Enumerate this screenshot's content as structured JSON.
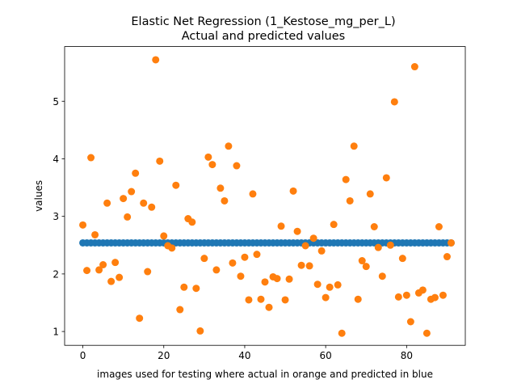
{
  "chart_data": {
    "type": "scatter",
    "title_line1": "Elastic Net Regression (1_Kestose_mg_per_L)",
    "title_line2": "Actual and predicted values",
    "xlabel": "images used for testing where actual in orange and predicted in blue",
    "ylabel": "values",
    "xlim": [
      -4.5,
      94.5
    ],
    "ylim": [
      0.76,
      5.95
    ],
    "xticks": [
      0,
      20,
      40,
      60,
      80
    ],
    "yticks": [
      1,
      2,
      3,
      4,
      5
    ],
    "grid": false,
    "series": [
      {
        "color": "#1f77b4",
        "x": [
          0,
          1,
          2,
          3,
          4,
          5,
          6,
          7,
          8,
          9,
          10,
          11,
          12,
          13,
          14,
          15,
          16,
          17,
          18,
          19,
          20,
          21,
          22,
          23,
          24,
          25,
          26,
          27,
          28,
          29,
          30,
          31,
          32,
          33,
          34,
          35,
          36,
          37,
          38,
          39,
          40,
          41,
          42,
          43,
          44,
          45,
          46,
          47,
          48,
          49,
          50,
          51,
          52,
          53,
          54,
          55,
          56,
          57,
          58,
          59,
          60,
          61,
          62,
          63,
          64,
          65,
          66,
          67,
          68,
          69,
          70,
          71,
          72,
          73,
          74,
          75,
          76,
          77,
          78,
          79,
          80,
          81,
          82,
          83,
          84,
          85,
          86,
          87,
          88,
          89,
          90,
          91
        ],
        "y": [
          2.54,
          2.54,
          2.54,
          2.54,
          2.54,
          2.54,
          2.54,
          2.54,
          2.54,
          2.54,
          2.54,
          2.54,
          2.54,
          2.54,
          2.54,
          2.54,
          2.54,
          2.54,
          2.54,
          2.54,
          2.54,
          2.54,
          2.54,
          2.54,
          2.54,
          2.54,
          2.54,
          2.54,
          2.54,
          2.54,
          2.54,
          2.54,
          2.54,
          2.54,
          2.54,
          2.54,
          2.54,
          2.54,
          2.54,
          2.54,
          2.54,
          2.54,
          2.54,
          2.54,
          2.54,
          2.54,
          2.54,
          2.54,
          2.54,
          2.54,
          2.54,
          2.54,
          2.54,
          2.54,
          2.54,
          2.54,
          2.54,
          2.54,
          2.54,
          2.54,
          2.54,
          2.54,
          2.54,
          2.54,
          2.54,
          2.54,
          2.54,
          2.54,
          2.54,
          2.54,
          2.54,
          2.54,
          2.54,
          2.54,
          2.54,
          2.54,
          2.54,
          2.54,
          2.54,
          2.54,
          2.54,
          2.54,
          2.54,
          2.54,
          2.54,
          2.54,
          2.54,
          2.54,
          2.54,
          2.54,
          2.54,
          2.54
        ]
      },
      {
        "color": "#ff7f0e",
        "x": [
          0,
          1,
          2,
          3,
          4,
          5,
          6,
          7,
          8,
          9,
          10,
          11,
          12,
          13,
          14,
          15,
          16,
          17,
          18,
          19,
          20,
          21,
          22,
          23,
          24,
          25,
          26,
          27,
          28,
          29,
          30,
          31,
          32,
          33,
          34,
          35,
          36,
          37,
          38,
          39,
          40,
          41,
          42,
          43,
          44,
          45,
          46,
          47,
          48,
          49,
          50,
          51,
          52,
          53,
          54,
          55,
          56,
          57,
          58,
          59,
          60,
          61,
          62,
          63,
          64,
          65,
          66,
          67,
          68,
          69,
          70,
          71,
          72,
          73,
          74,
          75,
          76,
          77,
          78,
          79,
          80,
          81,
          82,
          83,
          84,
          85,
          86,
          87,
          88,
          89,
          90,
          91
        ],
        "y": [
          2.85,
          2.06,
          4.02,
          2.68,
          2.07,
          2.16,
          3.23,
          1.87,
          2.2,
          1.94,
          3.31,
          2.99,
          3.43,
          3.75,
          1.23,
          3.23,
          2.04,
          3.16,
          5.72,
          3.96,
          2.66,
          2.49,
          2.45,
          3.54,
          1.38,
          1.77,
          2.96,
          2.9,
          1.75,
          1.01,
          2.27,
          4.03,
          3.9,
          2.07,
          3.49,
          3.27,
          4.22,
          2.19,
          3.88,
          1.96,
          2.29,
          1.55,
          3.39,
          2.34,
          1.56,
          1.86,
          1.42,
          1.95,
          1.92,
          2.83,
          1.55,
          1.91,
          3.44,
          2.74,
          2.15,
          2.49,
          2.14,
          2.62,
          1.82,
          2.4,
          1.59,
          1.77,
          2.86,
          1.81,
          0.97,
          3.64,
          3.27,
          4.22,
          1.56,
          2.23,
          2.13,
          3.39,
          2.82,
          2.46,
          1.96,
          3.67,
          2.5,
          4.99,
          1.6,
          2.27,
          1.63,
          1.17,
          5.6,
          1.67,
          1.72,
          0.97,
          1.56,
          1.59,
          2.82,
          1.63,
          2.3,
          2.54
        ]
      }
    ]
  }
}
